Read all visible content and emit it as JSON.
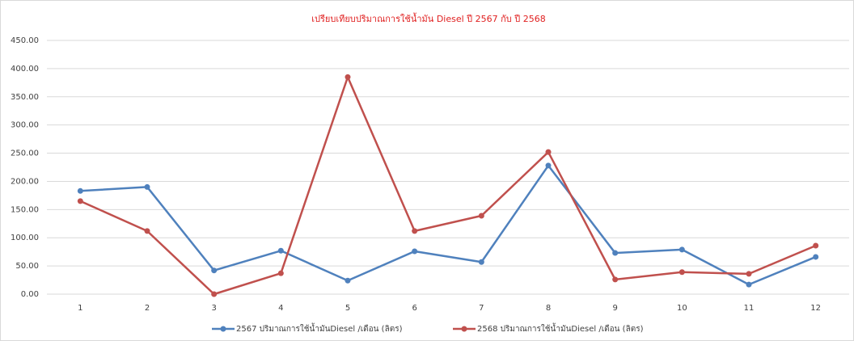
{
  "chart_data": {
    "type": "line",
    "title": "เปรียบเทียบปริมาณการใช้น้ำมัน Diesel ปี 2567 กับ ปี 2568",
    "categories": [
      "1",
      "2",
      "3",
      "4",
      "5",
      "6",
      "7",
      "8",
      "9",
      "10",
      "11",
      "12"
    ],
    "series": [
      {
        "name": "2567  ปริมาณการใช้น้ำมันDiesel /เดือน (ลิตร)",
        "color": "#4f81bd",
        "values": [
          183,
          190,
          42,
          77,
          24,
          76,
          57,
          228,
          73,
          79,
          17,
          66
        ]
      },
      {
        "name": "2568  ปริมาณการใช้น้ำมันDiesel /เดือน (ลิตร)",
        "color": "#c0504d",
        "values": [
          165,
          112,
          0,
          37,
          385,
          112,
          139,
          252,
          26,
          39,
          36,
          86
        ]
      }
    ],
    "ylim": [
      0,
      450
    ],
    "yticks": [
      {
        "value": 0,
        "label": "0.00"
      },
      {
        "value": 50,
        "label": "50.00"
      },
      {
        "value": 100,
        "label": "100.00"
      },
      {
        "value": 150,
        "label": "150.00"
      },
      {
        "value": 200,
        "label": "200.00"
      },
      {
        "value": 250,
        "label": "250.00"
      },
      {
        "value": 300,
        "label": "300.00"
      },
      {
        "value": 350,
        "label": "350.00"
      },
      {
        "value": 400,
        "label": "400.00"
      },
      {
        "value": 450,
        "label": "450.00"
      }
    ],
    "grid": true,
    "legend": "bottom"
  }
}
